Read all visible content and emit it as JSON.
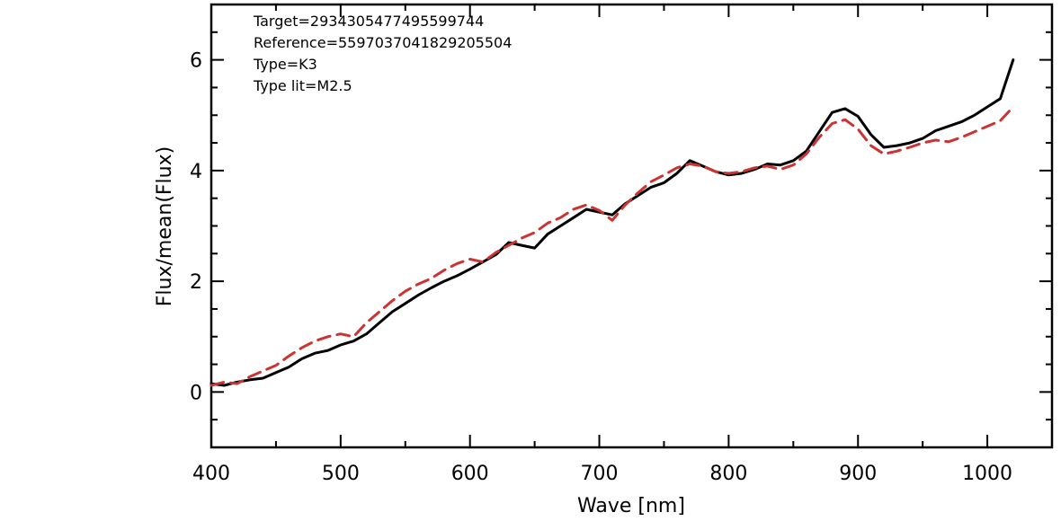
{
  "chart_data": {
    "type": "line",
    "xlabel": "Wave [nm]",
    "ylabel": "Flux/mean(Flux)",
    "xlim": [
      400,
      1050
    ],
    "ylim": [
      -1,
      7
    ],
    "x_ticks": [
      "400",
      "500",
      "600",
      "700",
      "800",
      "900",
      "1000"
    ],
    "y_ticks": [
      "0",
      "2",
      "4",
      "6"
    ],
    "grid": false,
    "annotations": [
      "Target=2934305477495599744",
      "Reference=5597037041829205504",
      "Type=K3",
      "Type lit=M2.5"
    ],
    "series": [
      {
        "color": "#000000",
        "style": "solid",
        "x": [
          400,
          410,
          420,
          430,
          440,
          450,
          460,
          470,
          480,
          490,
          500,
          510,
          520,
          530,
          540,
          550,
          560,
          570,
          580,
          590,
          600,
          610,
          620,
          630,
          640,
          650,
          660,
          670,
          680,
          690,
          700,
          710,
          720,
          730,
          740,
          750,
          760,
          770,
          780,
          790,
          800,
          810,
          820,
          830,
          840,
          850,
          860,
          870,
          880,
          890,
          900,
          910,
          920,
          930,
          940,
          950,
          960,
          970,
          980,
          990,
          1000,
          1010,
          1020
        ],
        "y": [
          0.15,
          0.12,
          0.18,
          0.22,
          0.25,
          0.35,
          0.45,
          0.6,
          0.7,
          0.75,
          0.85,
          0.92,
          1.05,
          1.25,
          1.45,
          1.6,
          1.75,
          1.88,
          2.0,
          2.1,
          2.22,
          2.35,
          2.48,
          2.7,
          2.65,
          2.6,
          2.85,
          3.0,
          3.15,
          3.3,
          3.25,
          3.2,
          3.4,
          3.55,
          3.7,
          3.78,
          3.95,
          4.18,
          4.08,
          3.98,
          3.92,
          3.95,
          4.02,
          4.12,
          4.1,
          4.18,
          4.35,
          4.7,
          5.05,
          5.12,
          4.98,
          4.65,
          4.42,
          4.45,
          4.5,
          4.58,
          4.72,
          4.8,
          4.88,
          5.0,
          5.15,
          5.3,
          6.0
        ]
      },
      {
        "color": "#cc3333",
        "style": "dashed",
        "x": [
          400,
          410,
          420,
          430,
          440,
          450,
          460,
          470,
          480,
          490,
          500,
          510,
          520,
          530,
          540,
          550,
          560,
          570,
          580,
          590,
          600,
          610,
          620,
          630,
          640,
          650,
          660,
          670,
          680,
          690,
          700,
          710,
          720,
          730,
          740,
          750,
          760,
          770,
          780,
          790,
          800,
          810,
          820,
          830,
          840,
          850,
          860,
          870,
          880,
          890,
          900,
          910,
          920,
          930,
          940,
          950,
          960,
          970,
          980,
          990,
          1000,
          1010,
          1020
        ],
        "y": [
          0.12,
          0.18,
          0.15,
          0.28,
          0.38,
          0.48,
          0.65,
          0.8,
          0.92,
          1.0,
          1.05,
          1.0,
          1.25,
          1.45,
          1.65,
          1.82,
          1.95,
          2.05,
          2.2,
          2.32,
          2.4,
          2.35,
          2.52,
          2.65,
          2.78,
          2.88,
          3.05,
          3.15,
          3.3,
          3.38,
          3.28,
          3.1,
          3.38,
          3.6,
          3.8,
          3.92,
          4.05,
          4.12,
          4.08,
          3.98,
          3.95,
          3.98,
          4.05,
          4.08,
          4.02,
          4.1,
          4.3,
          4.6,
          4.85,
          4.92,
          4.75,
          4.45,
          4.3,
          4.35,
          4.42,
          4.5,
          4.55,
          4.52,
          4.6,
          4.7,
          4.8,
          4.9,
          5.15
        ]
      }
    ]
  }
}
